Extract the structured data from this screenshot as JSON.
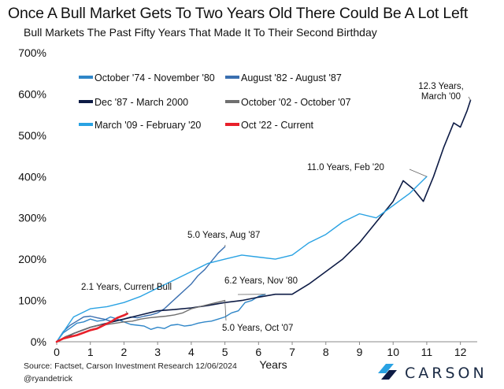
{
  "header": {
    "title": "Once A Bull Market Gets To Two Years Old There Could Be A Lot Left",
    "subtitle": "Bull Markets The Past Fifty Years That Made It To Their Second Birthday"
  },
  "footer": {
    "source": "Source: Factset, Carson Investment Research 12/06/2024",
    "handle": "@ryandetrick",
    "logo_text": "CARSON"
  },
  "chart_data": {
    "type": "line",
    "title": "Once A Bull Market Gets To Two Years Old There Could Be A Lot Left",
    "subtitle": "Bull Markets The Past Fifty Years That Made It To Their Second Birthday",
    "xlabel": "Years",
    "ylabel": "",
    "xlim": [
      0,
      12.5
    ],
    "ylim": [
      0,
      700
    ],
    "x_ticks": [
      0,
      1,
      2,
      3,
      4,
      5,
      6,
      7,
      8,
      9,
      10,
      11,
      12
    ],
    "y_ticks": [
      0,
      100,
      200,
      300,
      400,
      500,
      600,
      700
    ],
    "y_tick_labels": [
      "0%",
      "100%",
      "200%",
      "300%",
      "400%",
      "500%",
      "600%",
      "700%"
    ],
    "grid": false,
    "legend_position": "top-left",
    "series": [
      {
        "name": "October '74 - November '80",
        "color": "#2f86c8",
        "width": 1.4,
        "x": [
          0,
          0.2,
          0.4,
          0.6,
          0.8,
          1.0,
          1.2,
          1.4,
          1.6,
          1.8,
          2.0,
          2.2,
          2.4,
          2.6,
          2.8,
          3.0,
          3.2,
          3.4,
          3.6,
          3.8,
          4.0,
          4.2,
          4.4,
          4.6,
          4.8,
          5.0,
          5.2,
          5.4,
          5.6,
          5.8,
          6.0,
          6.2
        ],
        "y": [
          0,
          22,
          33,
          45,
          48,
          55,
          50,
          52,
          60,
          55,
          48,
          42,
          40,
          38,
          30,
          35,
          32,
          40,
          42,
          38,
          40,
          45,
          48,
          50,
          55,
          60,
          70,
          75,
          95,
          100,
          110,
          115
        ]
      },
      {
        "name": "August '82 - August '87",
        "color": "#3a6fb0",
        "width": 1.4,
        "x": [
          0,
          0.2,
          0.4,
          0.6,
          0.8,
          1.0,
          1.2,
          1.4,
          1.6,
          1.8,
          2.0,
          2.2,
          2.4,
          2.6,
          2.8,
          3.0,
          3.2,
          3.4,
          3.6,
          3.8,
          4.0,
          4.2,
          4.4,
          4.6,
          4.8,
          5.0
        ],
        "y": [
          0,
          25,
          40,
          50,
          60,
          62,
          58,
          55,
          50,
          52,
          55,
          60,
          58,
          62,
          65,
          70,
          80,
          95,
          110,
          125,
          140,
          160,
          175,
          195,
          215,
          230
        ]
      },
      {
        "name": "Dec '87 - March 2000",
        "color": "#0d1b45",
        "width": 1.6,
        "x": [
          0,
          0.5,
          1.0,
          1.5,
          2.0,
          2.5,
          3.0,
          3.5,
          4.0,
          4.5,
          5.0,
          5.5,
          6.0,
          6.5,
          7.0,
          7.5,
          8.0,
          8.5,
          9.0,
          9.5,
          10.0,
          10.3,
          10.6,
          10.9,
          11.2,
          11.5,
          11.8,
          12.0,
          12.2,
          12.3
        ],
        "y": [
          0,
          20,
          35,
          45,
          55,
          65,
          75,
          78,
          82,
          88,
          95,
          100,
          108,
          115,
          115,
          140,
          170,
          200,
          240,
          290,
          340,
          390,
          370,
          340,
          400,
          470,
          530,
          520,
          560,
          585
        ]
      },
      {
        "name": "October '02 - October '07",
        "color": "#707070",
        "width": 1.4,
        "x": [
          0,
          0.25,
          0.5,
          0.75,
          1.0,
          1.25,
          1.5,
          1.75,
          2.0,
          2.25,
          2.5,
          2.75,
          3.0,
          3.25,
          3.5,
          3.75,
          4.0,
          4.25,
          4.5,
          4.75,
          5.0
        ],
        "y": [
          0,
          12,
          20,
          28,
          35,
          40,
          42,
          45,
          48,
          50,
          55,
          58,
          60,
          62,
          65,
          70,
          80,
          85,
          90,
          95,
          100
        ]
      },
      {
        "name": "March '09 - February '20",
        "color": "#29a2e3",
        "width": 1.4,
        "x": [
          0,
          0.5,
          1.0,
          1.5,
          2.0,
          2.5,
          3.0,
          3.5,
          4.0,
          4.5,
          5.0,
          5.5,
          6.0,
          6.5,
          7.0,
          7.5,
          8.0,
          8.5,
          9.0,
          9.5,
          10.0,
          10.5,
          11.0
        ],
        "y": [
          0,
          60,
          80,
          85,
          95,
          110,
          130,
          150,
          170,
          190,
          200,
          210,
          205,
          200,
          210,
          240,
          260,
          290,
          310,
          300,
          330,
          360,
          400
        ]
      },
      {
        "name": "Oct '22 - Current",
        "color": "#e8202a",
        "width": 2.6,
        "x": [
          0,
          0.2,
          0.4,
          0.6,
          0.8,
          1.0,
          1.2,
          1.4,
          1.6,
          1.8,
          2.0,
          2.1
        ],
        "y": [
          0,
          8,
          12,
          16,
          22,
          28,
          32,
          40,
          48,
          58,
          64,
          68
        ]
      }
    ],
    "annotations": [
      {
        "label_lines": [
          "12.3 Years,",
          "March '00"
        ],
        "x": 12.3,
        "y": 585
      },
      {
        "label_lines": [
          "11.0 Years, Feb '20"
        ],
        "x": 11.0,
        "y": 400
      },
      {
        "label_lines": [
          "5.0 Years, Aug '87"
        ],
        "x": 5.0,
        "y": 230
      },
      {
        "label_lines": [
          "2.1 Years, Current Bull"
        ],
        "x": 2.1,
        "y": 68
      },
      {
        "label_lines": [
          "6.2 Years, Nov '80"
        ],
        "x": 6.2,
        "y": 115
      },
      {
        "label_lines": [
          "5.0 Years, Oct '07"
        ],
        "x": 5.0,
        "y": 100
      }
    ]
  }
}
